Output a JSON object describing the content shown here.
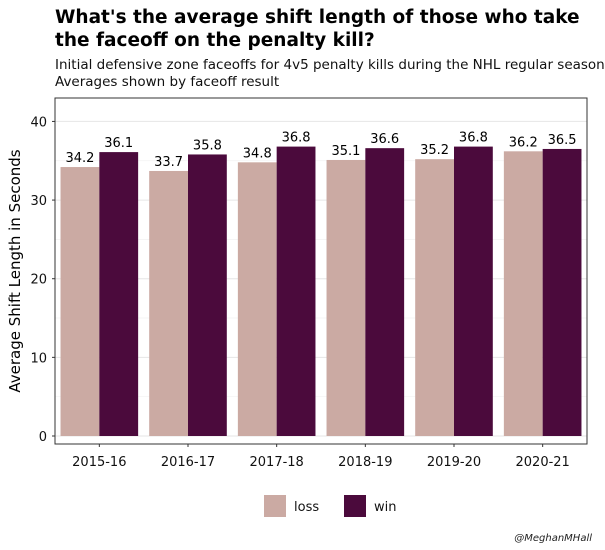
{
  "title": "What's the average shift length of those who take the faceoff on the penalty kill?",
  "subtitle_line1": "Initial defensive zone faceoffs for 4v5 penalty kills during the NHL regular season",
  "subtitle_line2": "Averages shown by faceoff result",
  "credit": "@MeghanMHall",
  "chart_data": {
    "type": "bar",
    "title": "What's the average shift length of those who take the faceoff on the penalty kill?",
    "subtitle": "Initial defensive zone faceoffs for 4v5 penalty kills during the NHL regular season",
    "caption": "Averages shown by faceoff result",
    "xlabel": "",
    "ylabel": "Average Shift Length in Seconds",
    "categories": [
      "2015-16",
      "2016-17",
      "2017-18",
      "2018-19",
      "2019-20",
      "2020-21"
    ],
    "series": [
      {
        "name": "loss",
        "color": "#cbaaa3",
        "values": [
          34.2,
          33.7,
          34.8,
          35.1,
          35.2,
          36.2
        ]
      },
      {
        "name": "win",
        "color": "#4b0a3c",
        "values": [
          36.1,
          35.8,
          36.8,
          36.6,
          36.8,
          36.5
        ]
      }
    ],
    "ylim": [
      0,
      42
    ],
    "yticks": [
      0,
      10,
      20,
      30,
      40
    ],
    "grid": true,
    "legend_position": "bottom",
    "data_labels": true
  }
}
